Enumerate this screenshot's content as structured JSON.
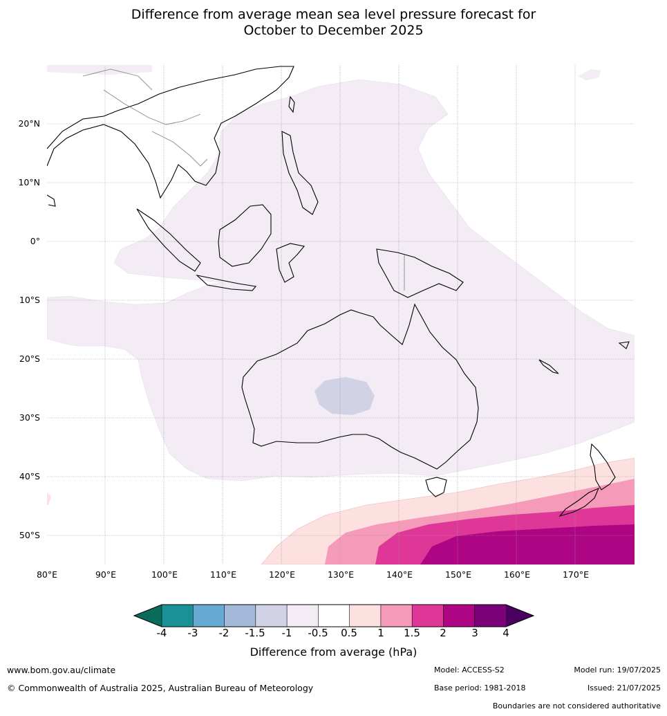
{
  "title": {
    "line1": "Difference from average mean sea level pressure forecast for",
    "line2": "October to December 2025"
  },
  "map": {
    "lat_labels": [
      "20°N",
      "10°N",
      "0°",
      "10°S",
      "20°S",
      "30°S",
      "40°S",
      "50°S"
    ],
    "lon_labels": [
      "80°E",
      "90°E",
      "100°E",
      "110°E",
      "120°E",
      "130°E",
      "140°E",
      "150°E",
      "160°E",
      "170°E"
    ],
    "colors": {
      "land_outline": "#000000",
      "borders": "#888888",
      "neg_0_5_to_1": "#f3ecf5",
      "neg_1_to_1_5": "#d1d2e6",
      "pos_0_5_to_1": "#fde0e0",
      "pos_1_to_1_5": "#f59ab8",
      "pos_1_5_to_2": "#de3797",
      "pos_2_to_3": "#ad0583",
      "grid": "#999999"
    }
  },
  "colorbar": {
    "ticks": [
      "-4",
      "-3",
      "-2",
      "-1.5",
      "-1",
      "-0.5",
      "0.5",
      "1",
      "1.5",
      "2",
      "3",
      "4"
    ],
    "segment_colors": [
      "#1a9197",
      "#68abd2",
      "#a4b8d9",
      "#d1d2e6",
      "#f3ecf5",
      "#ffffff",
      "#fde0e0",
      "#f59ab8",
      "#de3797",
      "#ad0583",
      "#7a0177"
    ],
    "low_arrow_color": "#0b6b5a",
    "high_arrow_color": "#4a005f",
    "label": "Difference from average (hPa)"
  },
  "footer": {
    "website": "www.bom.gov.au/climate",
    "copyright": "© Commonwealth of Australia 2025, Australian Bureau of Meteorology",
    "model": "Model: ACCESS-S2",
    "base_period": "Base period: 1981-2018",
    "model_run": "Model run: 19/07/2025",
    "issued": "Issued: 21/07/2025",
    "disclaimer": "Boundaries are not considered authoritative"
  }
}
